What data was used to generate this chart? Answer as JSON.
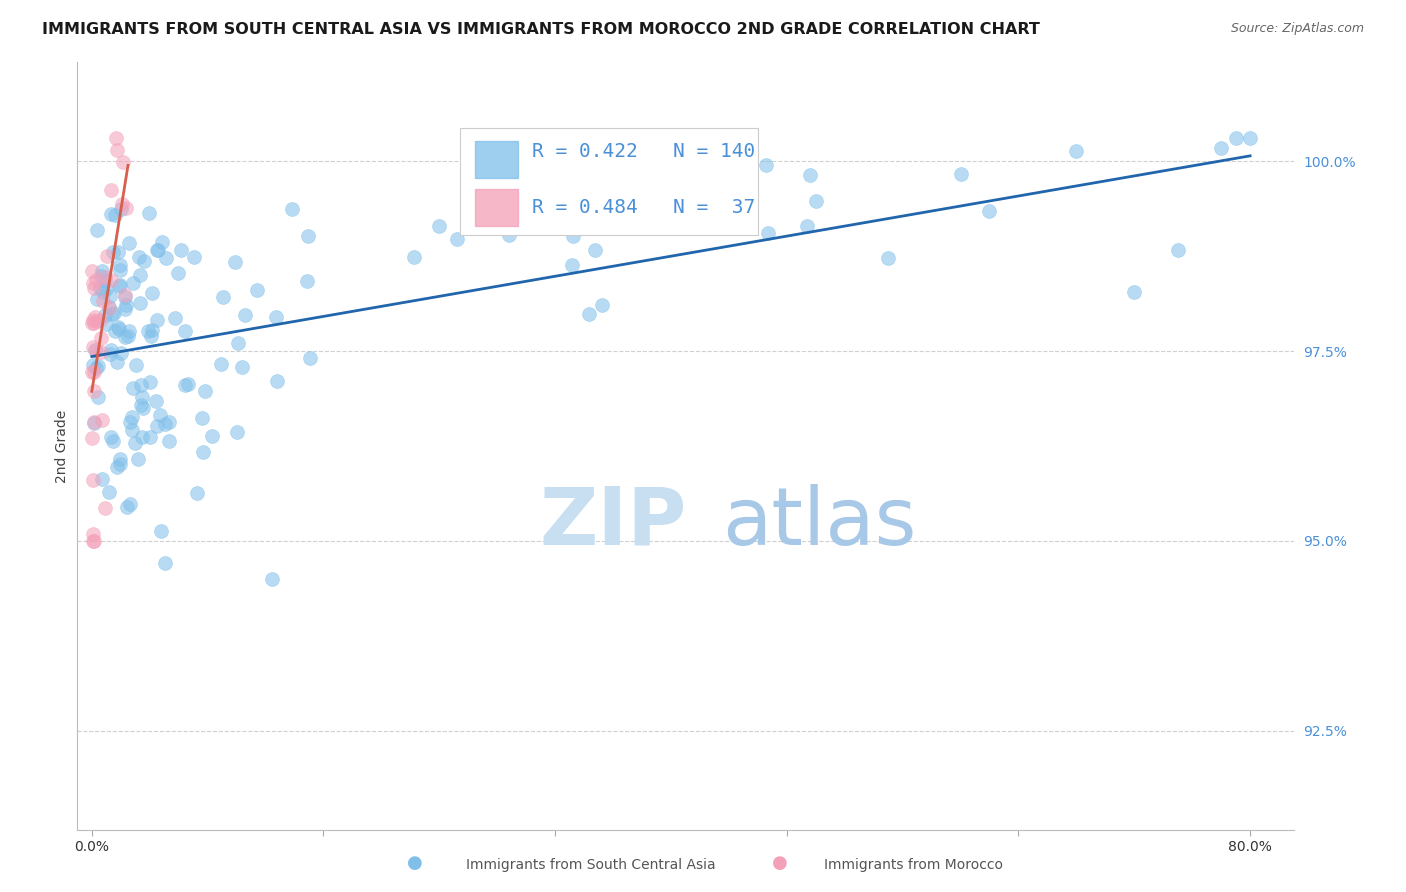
{
  "title": "IMMIGRANTS FROM SOUTH CENTRAL ASIA VS IMMIGRANTS FROM MOROCCO 2ND GRADE CORRELATION CHART",
  "source": "Source: ZipAtlas.com",
  "xlabel_blue": "Immigrants from South Central Asia",
  "xlabel_pink": "Immigrants from Morocco",
  "ylabel": "2nd Grade",
  "R_blue": 0.422,
  "N_blue": 140,
  "R_pink": 0.484,
  "N_pink": 37,
  "xlim_min": -1.0,
  "xlim_max": 83.0,
  "ylim_min": 91.2,
  "ylim_max": 101.3,
  "yticks": [
    92.5,
    95.0,
    97.5,
    100.0
  ],
  "xtick_left": 0.0,
  "xtick_right": 80.0,
  "blue_color": "#7fbfea",
  "pink_color": "#f4a0b8",
  "blue_line_color": "#2166ac",
  "pink_line_color": "#d6604d",
  "axis_tick_color": "#4a90d9",
  "watermark_zip_color": "#c8dff2",
  "watermark_atlas_color": "#a8c8e8",
  "background_color": "#ffffff",
  "grid_color": "#d0d0d0",
  "title_fontsize": 11.5,
  "legend_fontsize": 14,
  "axis_label_fontsize": 10,
  "tick_fontsize": 10,
  "source_fontsize": 9
}
